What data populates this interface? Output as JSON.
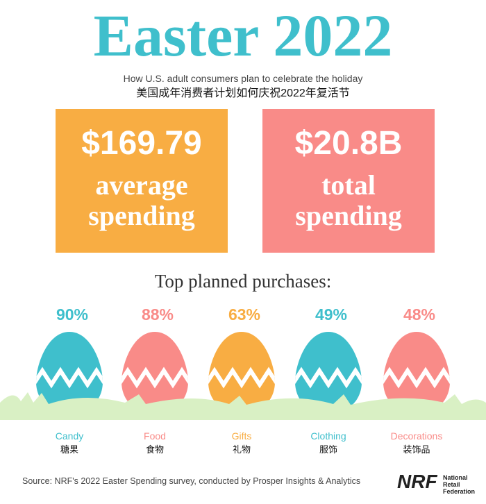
{
  "header": {
    "title": "Easter 2022",
    "subtitle_en": "How U.S. adult consumers plan to celebrate the holiday",
    "subtitle_zh": "美国成年消费者计划如何庆祝2022年复活节"
  },
  "stats": [
    {
      "value": "$169.79",
      "label": "average spending",
      "color": "#f8ad43"
    },
    {
      "value": "$20.8B",
      "label": "total spending",
      "color": "#f98b88"
    }
  ],
  "purchases": {
    "heading": "Top planned purchases:",
    "items": [
      {
        "percent": "90%",
        "label_en": "Candy",
        "label_zh": "糖果",
        "color": "#3fbfcc"
      },
      {
        "percent": "88%",
        "label_en": "Food",
        "label_zh": "食物",
        "color": "#f98b88"
      },
      {
        "percent": "63%",
        "label_en": "Gifts",
        "label_zh": "礼物",
        "color": "#f8ad43"
      },
      {
        "percent": "49%",
        "label_en": "Clothing",
        "label_zh": "服饰",
        "color": "#3fbfcc"
      },
      {
        "percent": "48%",
        "label_en": "Decorations",
        "label_zh": "装饰品",
        "color": "#f98b88"
      }
    ]
  },
  "footer": {
    "source": "Source: NRF's 2022 Easter Spending survey, conducted by Prosper Insights & Analytics",
    "logo": "NRF",
    "logo_text": "National Retail Federation"
  }
}
